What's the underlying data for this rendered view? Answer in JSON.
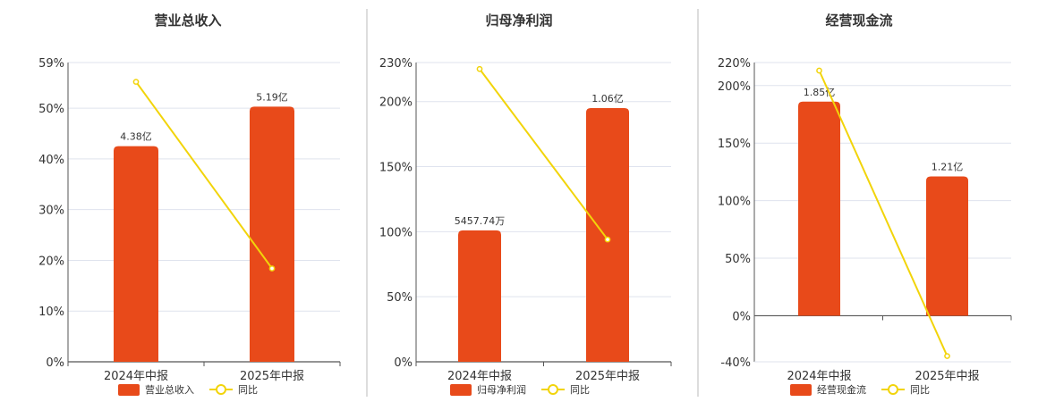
{
  "colors": {
    "bar": "#e84a1a",
    "line": "#f2d40a",
    "grid": "#dfe3ee",
    "axis": "#555555",
    "divider": "#bbbbbb"
  },
  "chart_data": [
    {
      "type": "bar",
      "title": "营业总收入",
      "categories": [
        "2024年中报",
        "2025年中报"
      ],
      "bar_values": [
        42.5,
        50.3
      ],
      "bar_labels": [
        "4.38亿",
        "5.19亿"
      ],
      "line_values": [
        55.2,
        18.4
      ],
      "yticks": [
        0,
        10,
        20,
        30,
        40,
        50,
        59
      ],
      "ytick_labels": [
        "0%",
        "10%",
        "20%",
        "30%",
        "40%",
        "50%",
        "59%"
      ],
      "ylim": [
        0,
        59
      ],
      "legend": [
        "营业总收入",
        "同比"
      ],
      "grid": true,
      "legend_position": "bottom"
    },
    {
      "type": "bar",
      "title": "归母净利润",
      "categories": [
        "2024年中报",
        "2025年中报"
      ],
      "bar_values": [
        101,
        195
      ],
      "bar_labels": [
        "5457.74万",
        "1.06亿"
      ],
      "line_values": [
        225,
        94
      ],
      "yticks": [
        0,
        50,
        100,
        150,
        200,
        230
      ],
      "ytick_labels": [
        "0%",
        "50%",
        "100%",
        "150%",
        "200%",
        "230%"
      ],
      "ylim": [
        0,
        230
      ],
      "legend": [
        "归母净利润",
        "同比"
      ],
      "grid": true,
      "legend_position": "bottom"
    },
    {
      "type": "bar",
      "title": "经营现金流",
      "categories": [
        "2024年中报",
        "2025年中报"
      ],
      "bar_values": [
        186,
        121
      ],
      "bar_labels": [
        "1.85亿",
        "1.21亿"
      ],
      "line_values": [
        213,
        -35
      ],
      "yticks": [
        -40,
        0,
        50,
        100,
        150,
        200,
        220
      ],
      "ytick_labels": [
        "-40%",
        "0%",
        "50%",
        "100%",
        "150%",
        "200%",
        "220%"
      ],
      "ylim": [
        -40,
        220
      ],
      "legend": [
        "经营现金流",
        "同比"
      ],
      "grid": true,
      "legend_position": "bottom"
    }
  ]
}
